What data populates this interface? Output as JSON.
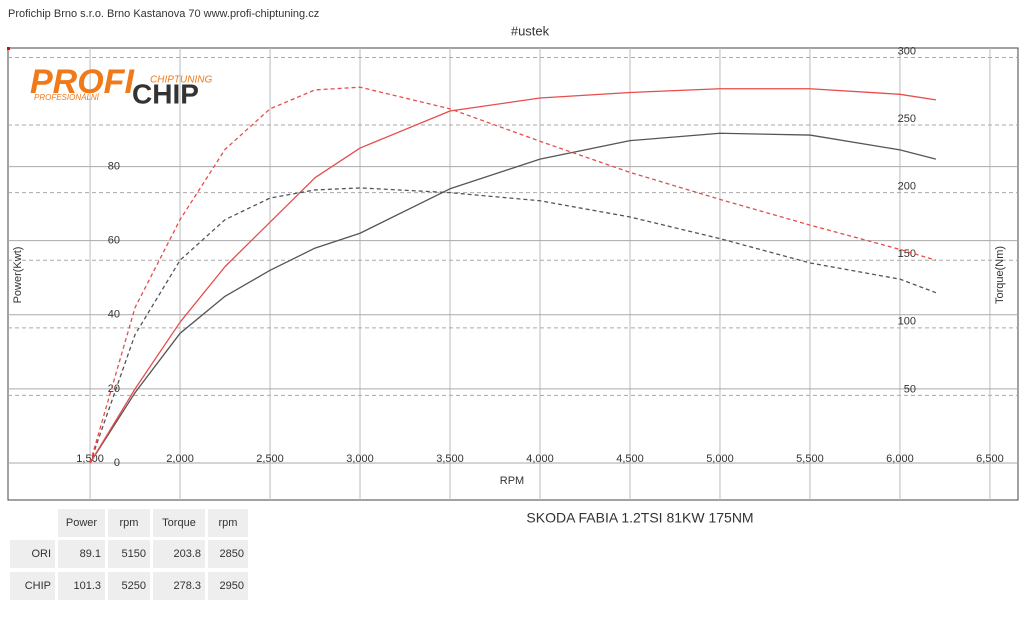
{
  "header": "Profichip Brno s.r.o. Brno Kastanova 70 www.profi-chiptuning.cz",
  "logo": {
    "main": "PROFI",
    "chip": "CHIP",
    "tag_top": "CHIPTUNING",
    "tag_bottom": "PROFESIONÁLNÍ"
  },
  "chart_data": {
    "type": "line",
    "title": "#ustek",
    "subtitle": "SKODA FABIA 1.2TSI 81KW 175NM",
    "x_label": "RPM",
    "y_label": "Power(Kwt)",
    "y2_label": "Torque(Nm)",
    "x": [
      1500,
      1750,
      2000,
      2250,
      2500,
      2750,
      3000,
      3500,
      4000,
      4500,
      5000,
      5500,
      6000,
      6200
    ],
    "series": [
      {
        "color": "#555555",
        "dash": false,
        "values": [
          0,
          19,
          35,
          45,
          52,
          58,
          62,
          74,
          82,
          87,
          89,
          88.5,
          84.5,
          82
        ]
      },
      {
        "color": "#e84c4c",
        "dash": false,
        "values": [
          0,
          20,
          38,
          53,
          65,
          77,
          85,
          95,
          98.5,
          100,
          101,
          101,
          99.5,
          98
        ]
      },
      {
        "color": "#555555",
        "dash": true,
        "axis": "y2",
        "values": [
          0,
          95,
          150,
          180,
          196,
          202,
          203.5,
          200,
          194,
          182,
          166,
          148,
          136,
          126
        ]
      },
      {
        "color": "#e84c4c",
        "dash": true,
        "axis": "y2",
        "values": [
          0,
          115,
          180,
          232,
          262,
          276,
          278,
          262,
          238,
          215,
          195,
          176,
          158,
          150
        ]
      }
    ],
    "xlim": [
      1044,
      6656
    ],
    "xticks": [
      {
        "value": 1500,
        "label": "1,500"
      },
      {
        "value": 2000,
        "label": "2,000"
      },
      {
        "value": 2500,
        "label": "2,500"
      },
      {
        "value": 3000,
        "label": "3,000"
      },
      {
        "value": 3500,
        "label": "3,500"
      },
      {
        "value": 4000,
        "label": "4,000"
      },
      {
        "value": 4500,
        "label": "4,500"
      },
      {
        "value": 5000,
        "label": "5,000"
      },
      {
        "value": 5500,
        "label": "5,500"
      },
      {
        "value": 6000,
        "label": "6,000"
      },
      {
        "value": 6500,
        "label": "6,500"
      }
    ],
    "ylim": [
      0,
      112
    ],
    "yticks": [
      0,
      20,
      40,
      60,
      80
    ],
    "y2lim": [
      0,
      307
    ],
    "y2ticks": [
      50,
      100,
      150,
      200,
      250,
      300
    ],
    "grid": true
  },
  "table": {
    "header": [
      "Power",
      "rpm",
      "Torque",
      "rpm"
    ],
    "rows": [
      [
        "ORI",
        "89.1",
        "5150",
        "203.8",
        "2850"
      ],
      [
        "CHIP",
        "101.3",
        "5250",
        "278.3",
        "2950"
      ]
    ]
  }
}
